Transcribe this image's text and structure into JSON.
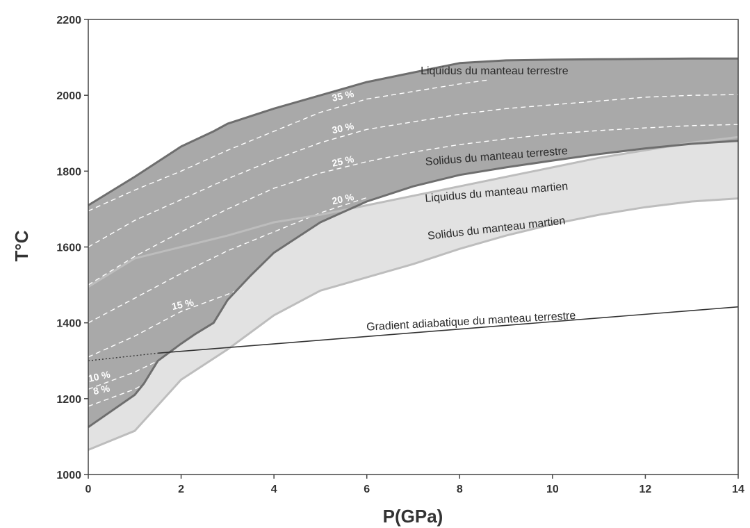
{
  "chart_data": {
    "type": "area",
    "xlabel": "P(GPa)",
    "ylabel": "T°C",
    "xlim": [
      0,
      14
    ],
    "ylim": [
      1000,
      2200
    ],
    "x_ticks": [
      "0",
      "2",
      "4",
      "6",
      "8",
      "10",
      "12",
      "14"
    ],
    "y_ticks": [
      "1000",
      "1200",
      "1400",
      "1600",
      "1800",
      "2000",
      "2200"
    ],
    "grid": false,
    "colors": {
      "earth_band": "#a9a9a9",
      "mars_band": "#e2e2e2",
      "earth_curve": "#6e6e6e",
      "mars_curve": "#bdbdbd",
      "adiabat": "#333333",
      "isopleth": "#ffffff"
    },
    "series": [
      {
        "key": "earth_liquidus",
        "name": "Liquidus du manteau terrestre",
        "x": [
          0,
          1,
          2,
          2.7,
          3,
          4,
          5,
          6,
          7,
          8,
          9,
          10,
          11,
          12,
          13,
          14
        ],
        "y": [
          1710,
          1785,
          1865,
          1905,
          1925,
          1965,
          2000,
          2035,
          2060,
          2085,
          2092,
          2094,
          2095,
          2096,
          2097,
          2097
        ]
      },
      {
        "key": "earth_solidus",
        "name": "Solidus du manteau terrestre",
        "x": [
          0,
          1,
          1.2,
          1.5,
          2,
          2.3,
          2.7,
          3,
          3.5,
          4,
          5,
          6,
          7,
          8,
          9,
          10,
          11,
          12,
          13,
          14
        ],
        "y": [
          1125,
          1210,
          1240,
          1300,
          1345,
          1370,
          1400,
          1460,
          1525,
          1585,
          1665,
          1720,
          1760,
          1790,
          1810,
          1828,
          1845,
          1860,
          1872,
          1880
        ]
      },
      {
        "key": "mars_liquidus",
        "name": "Liquidus du manteau martien",
        "x": [
          0,
          1,
          2,
          3,
          4,
          5,
          6,
          7,
          8,
          9,
          10,
          11,
          12,
          13,
          14
        ],
        "y": [
          1495,
          1570,
          1600,
          1630,
          1665,
          1685,
          1710,
          1735,
          1760,
          1785,
          1810,
          1835,
          1855,
          1875,
          1890
        ]
      },
      {
        "key": "mars_solidus",
        "name": "Solidus du manteau martien",
        "x": [
          0,
          1,
          2,
          3,
          4,
          5,
          6,
          7,
          8,
          9,
          10,
          11,
          12,
          13,
          14
        ],
        "y": [
          1065,
          1115,
          1250,
          1330,
          1420,
          1485,
          1520,
          1555,
          1595,
          1630,
          1660,
          1685,
          1705,
          1720,
          1728
        ]
      },
      {
        "key": "adiabat",
        "name": "Gradient adiabatique du manteau terrestre",
        "x": [
          1.5,
          14
        ],
        "y": [
          1320,
          1442
        ]
      },
      {
        "key": "adiabat_extension",
        "x": [
          0,
          1.5
        ],
        "y": [
          1300,
          1320
        ]
      }
    ],
    "isopleths": [
      {
        "label": "35 %",
        "x": [
          0,
          1,
          2,
          3,
          4,
          5,
          6,
          7,
          8,
          8.6
        ],
        "y": [
          1695,
          1750,
          1800,
          1855,
          1905,
          1955,
          1990,
          2010,
          2030,
          2040
        ],
        "label_x": 5.5,
        "label_y": 1990
      },
      {
        "label": "30 %",
        "x": [
          0,
          1,
          2,
          3,
          4,
          5,
          6,
          7,
          8,
          9,
          10,
          11,
          12,
          13,
          14
        ],
        "y": [
          1600,
          1670,
          1725,
          1780,
          1830,
          1875,
          1910,
          1930,
          1950,
          1965,
          1975,
          1985,
          1995,
          2000,
          2002
        ],
        "label_x": 5.5,
        "label_y": 1905
      },
      {
        "label": "25 %",
        "x": [
          0,
          1,
          2,
          3,
          4,
          5,
          6,
          7,
          8,
          9,
          10,
          11,
          12,
          13,
          14
        ],
        "y": [
          1500,
          1575,
          1640,
          1700,
          1755,
          1795,
          1825,
          1850,
          1870,
          1885,
          1898,
          1907,
          1914,
          1920,
          1923
        ],
        "label_x": 5.5,
        "label_y": 1818
      },
      {
        "label": "20 %",
        "x": [
          0,
          1,
          2,
          3,
          4,
          5,
          6
        ],
        "y": [
          1400,
          1465,
          1530,
          1590,
          1640,
          1690,
          1730
        ],
        "label_x": 5.5,
        "label_y": 1718
      },
      {
        "label": "15 %",
        "x": [
          0,
          1,
          2,
          3,
          3.3
        ],
        "y": [
          1310,
          1365,
          1430,
          1475,
          1490
        ],
        "label_x": 2.05,
        "label_y": 1440
      },
      {
        "label": "10 %",
        "x": [
          0,
          1,
          1.5
        ],
        "y": [
          1225,
          1270,
          1300
        ],
        "label_x": 0.25,
        "label_y": 1250
      },
      {
        "label": "8 %",
        "x": [
          0,
          1,
          1.2
        ],
        "y": [
          1180,
          1225,
          1238
        ],
        "label_x": 0.3,
        "label_y": 1215
      }
    ],
    "annotations": [
      {
        "text": "Liquidus du manteau terrestre",
        "x": 8.75,
        "y": 2055,
        "angle": 0
      },
      {
        "text": "Solidus du manteau terrestre",
        "x": 8.8,
        "y": 1830,
        "angle": -4.5
      },
      {
        "text": "Liquidus du manteau martien",
        "x": 8.8,
        "y": 1735,
        "angle": -5
      },
      {
        "text": "Solidus du manteau martien",
        "x": 8.8,
        "y": 1640,
        "angle": -6.5
      },
      {
        "text": "Gradient adiabatique du manteau terrestre",
        "x": 8.25,
        "y": 1395,
        "angle": -3.2
      }
    ]
  }
}
